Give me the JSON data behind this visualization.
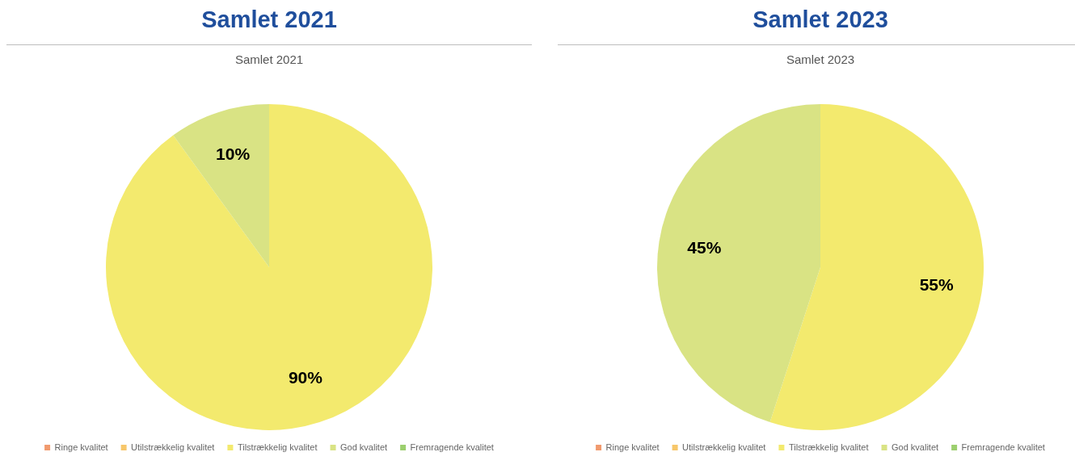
{
  "chart_data": [
    {
      "type": "pie",
      "title": "Samlet 2021",
      "subtitle": "Samlet 2021",
      "categories": [
        "Ringe kvalitet",
        "Utilstrækkelig kvalitet",
        "Tilstrækkelig kvalitet",
        "God kvalitet",
        "Fremragende kvalitet"
      ],
      "values": [
        0,
        0,
        90,
        10,
        0
      ],
      "colors": [
        "#f19a6e",
        "#f7c76a",
        "#f3ea6e",
        "#d9e384",
        "#9ccf6e"
      ],
      "value_labels": [
        null,
        null,
        "90%",
        "10%",
        null
      ],
      "legend": "bottom"
    },
    {
      "type": "pie",
      "title": "Samlet 2023",
      "subtitle": "Samlet 2023",
      "categories": [
        "Ringe kvalitet",
        "Utilstrækkelig kvalitet",
        "Tilstrækkelig kvalitet",
        "God kvalitet",
        "Fremragende kvalitet"
      ],
      "values": [
        0,
        0,
        55,
        45,
        0
      ],
      "colors": [
        "#f19a6e",
        "#f7c76a",
        "#f3ea6e",
        "#d9e384",
        "#9ccf6e"
      ],
      "value_labels": [
        null,
        null,
        "55%",
        "45%",
        null
      ],
      "legend": "bottom"
    }
  ]
}
